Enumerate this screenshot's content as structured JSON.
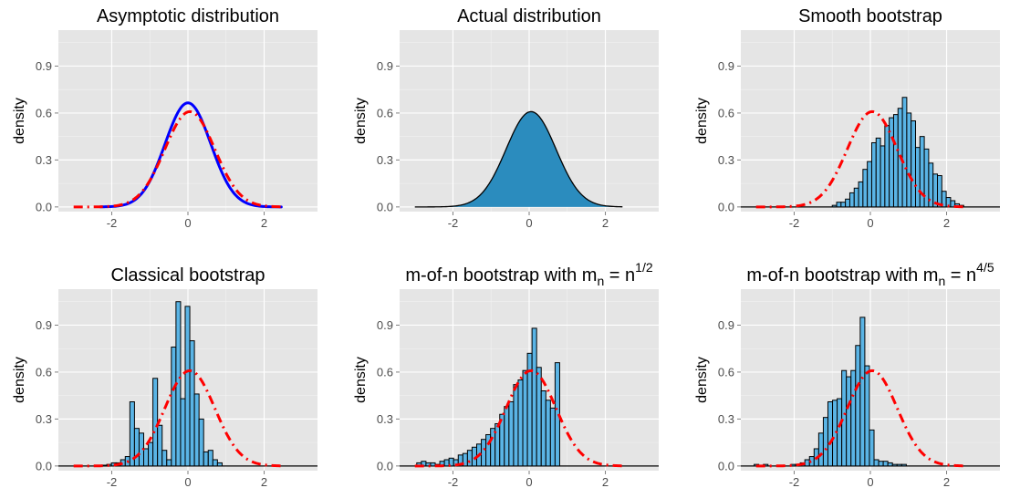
{
  "chart_data": [
    {
      "type": "line",
      "title": "Asymptotic distribution",
      "xlabel": "",
      "ylabel": "density",
      "xlim": [
        -3.4,
        3.4
      ],
      "ylim": [
        -0.03,
        1.13
      ],
      "x_ticks": [
        -2,
        0,
        2
      ],
      "x_tick_labels": [
        "-2",
        "0",
        "2"
      ],
      "y_ticks": [
        0.0,
        0.3,
        0.6,
        0.9
      ],
      "y_tick_labels": [
        "0.0",
        "0.3",
        "0.6",
        "0.9"
      ],
      "grid": true,
      "curves": [
        {
          "kind": "normal",
          "mean": 0.0,
          "sd": 0.6,
          "from": -2.3,
          "to": 2.45,
          "color": "#0000ff",
          "dashed": false
        },
        {
          "kind": "normal",
          "mean": 0.05,
          "sd": 0.655,
          "from": -3.0,
          "to": 2.45,
          "color": "#ff0000",
          "dashed": true
        }
      ],
      "bins": null
    },
    {
      "type": "area",
      "title": "Actual distribution",
      "xlabel": "",
      "ylabel": "density",
      "xlim": [
        -3.4,
        3.4
      ],
      "ylim": [
        -0.03,
        1.13
      ],
      "x_ticks": [
        -2,
        0,
        2
      ],
      "x_tick_labels": [
        "-2",
        "0",
        "2"
      ],
      "y_ticks": [
        0.0,
        0.3,
        0.6,
        0.9
      ],
      "y_tick_labels": [
        "0.0",
        "0.3",
        "0.6",
        "0.9"
      ],
      "grid": true,
      "curves": [
        {
          "kind": "normal",
          "mean": 0.05,
          "sd": 0.655,
          "from": -3.0,
          "to": 2.45,
          "color": "#000000",
          "fill": "#2b8cbe",
          "dashed": false
        }
      ],
      "bins": null
    },
    {
      "type": "bar",
      "title": "Smooth bootstrap",
      "xlabel": "",
      "ylabel": "density",
      "xlim": [
        -3.4,
        3.4
      ],
      "ylim": [
        -0.03,
        1.13
      ],
      "x_ticks": [
        -2,
        0,
        2
      ],
      "x_tick_labels": [
        "-2",
        "0",
        "2"
      ],
      "y_ticks": [
        0.0,
        0.3,
        0.6,
        0.9
      ],
      "y_tick_labels": [
        "0.0",
        "0.3",
        "0.6",
        "0.9"
      ],
      "grid": true,
      "bins": {
        "start": -1.0,
        "width": 0.115,
        "values": [
          0.01,
          0.03,
          0.03,
          0.05,
          0.09,
          0.12,
          0.16,
          0.24,
          0.29,
          0.41,
          0.44,
          0.39,
          0.52,
          0.57,
          0.59,
          0.63,
          0.7,
          0.6,
          0.55,
          0.38,
          0.45,
          0.37,
          0.28,
          0.21,
          0.2,
          0.1,
          0.06,
          0.04,
          0.02,
          0.01
        ],
        "fill": "#5ab4e5",
        "baseline": [
          -3.4,
          3.4
        ]
      },
      "curves": [
        {
          "kind": "normal",
          "mean": 0.05,
          "sd": 0.655,
          "from": -3.0,
          "to": 2.45,
          "color": "#ff0000",
          "dashed": true
        }
      ]
    },
    {
      "type": "bar",
      "title": "Classical bootstrap",
      "xlabel": "",
      "ylabel": "density",
      "xlim": [
        -3.4,
        3.4
      ],
      "ylim": [
        -0.03,
        1.13
      ],
      "x_ticks": [
        -2,
        0,
        2
      ],
      "x_tick_labels": [
        "-2",
        "0",
        "2"
      ],
      "y_ticks": [
        0.0,
        0.3,
        0.6,
        0.9
      ],
      "y_tick_labels": [
        "0.0",
        "0.3",
        "0.6",
        "0.9"
      ],
      "grid": true,
      "bins": {
        "start": -2.25,
        "width": 0.121,
        "values": [
          0.005,
          0.01,
          0.02,
          0.02,
          0.04,
          0.06,
          0.41,
          0.24,
          0.21,
          0.11,
          0.15,
          0.56,
          0.26,
          0.1,
          0.04,
          0.76,
          1.05,
          0.43,
          1.02,
          0.8,
          0.46,
          0.3,
          0.09,
          0.1,
          0.04,
          0.02
        ],
        "fill": "#5ab4e5",
        "baseline": [
          -3.4,
          3.4
        ]
      },
      "curves": [
        {
          "kind": "normal",
          "mean": 0.05,
          "sd": 0.655,
          "from": -3.0,
          "to": 2.45,
          "color": "#ff0000",
          "dashed": true
        }
      ]
    },
    {
      "type": "bar",
      "title": "m-of-n bootstrap with m",
      "title_sub": "n",
      "title_tail": " = n",
      "title_sup": "1/2",
      "xlabel": "",
      "ylabel": "density",
      "xlim": [
        -3.4,
        3.4
      ],
      "ylim": [
        -0.03,
        1.13
      ],
      "x_ticks": [
        -2,
        0,
        2
      ],
      "x_tick_labels": [
        "-2",
        "0",
        "2"
      ],
      "y_ticks": [
        0.0,
        0.3,
        0.6,
        0.9
      ],
      "y_tick_labels": [
        "0.0",
        "0.3",
        "0.6",
        "0.9"
      ],
      "grid": true,
      "bins": {
        "start": -2.95,
        "width": 0.121,
        "values": [
          0.02,
          0.03,
          0.02,
          0.02,
          0.01,
          0.03,
          0.04,
          0.05,
          0.04,
          0.07,
          0.08,
          0.1,
          0.12,
          0.14,
          0.17,
          0.2,
          0.24,
          0.27,
          0.33,
          0.38,
          0.41,
          0.52,
          0.55,
          0.61,
          0.72,
          0.88,
          0.63,
          0.48,
          0.42,
          0.37,
          0.66
        ],
        "fill": "#5ab4e5",
        "baseline": [
          -3.4,
          3.4
        ]
      },
      "curves": [
        {
          "kind": "normal",
          "mean": 0.05,
          "sd": 0.655,
          "from": -3.0,
          "to": 2.45,
          "color": "#ff0000",
          "dashed": true
        }
      ]
    },
    {
      "type": "bar",
      "title": "m-of-n bootstrap with m",
      "title_sub": "n",
      "title_tail": " = n",
      "title_sup": "4/5",
      "xlabel": "",
      "ylabel": "density",
      "xlim": [
        -3.4,
        3.4
      ],
      "ylim": [
        -0.03,
        1.13
      ],
      "x_ticks": [
        -2,
        0,
        2
      ],
      "x_tick_labels": [
        "-2",
        "0",
        "2"
      ],
      "y_ticks": [
        0.0,
        0.3,
        0.6,
        0.9
      ],
      "y_tick_labels": [
        "0.0",
        "0.3",
        "0.6",
        "0.9"
      ],
      "grid": true,
      "bins": {
        "start": -3.05,
        "width": 0.121,
        "values": [
          0.01,
          0.0,
          0.01,
          0.0,
          0.0,
          0.0,
          0.0,
          0.0,
          0.01,
          0.01,
          0.02,
          0.04,
          0.06,
          0.11,
          0.21,
          0.31,
          0.41,
          0.42,
          0.43,
          0.61,
          0.57,
          0.61,
          0.77,
          0.95,
          0.64,
          0.23,
          0.04,
          0.03,
          0.03,
          0.02,
          0.01,
          0.01,
          0.01
        ],
        "fill": "#5ab4e5",
        "baseline": [
          -3.4,
          3.4
        ]
      },
      "curves": [
        {
          "kind": "normal",
          "mean": 0.05,
          "sd": 0.655,
          "from": -3.0,
          "to": 2.45,
          "color": "#ff0000",
          "dashed": true
        }
      ]
    }
  ]
}
